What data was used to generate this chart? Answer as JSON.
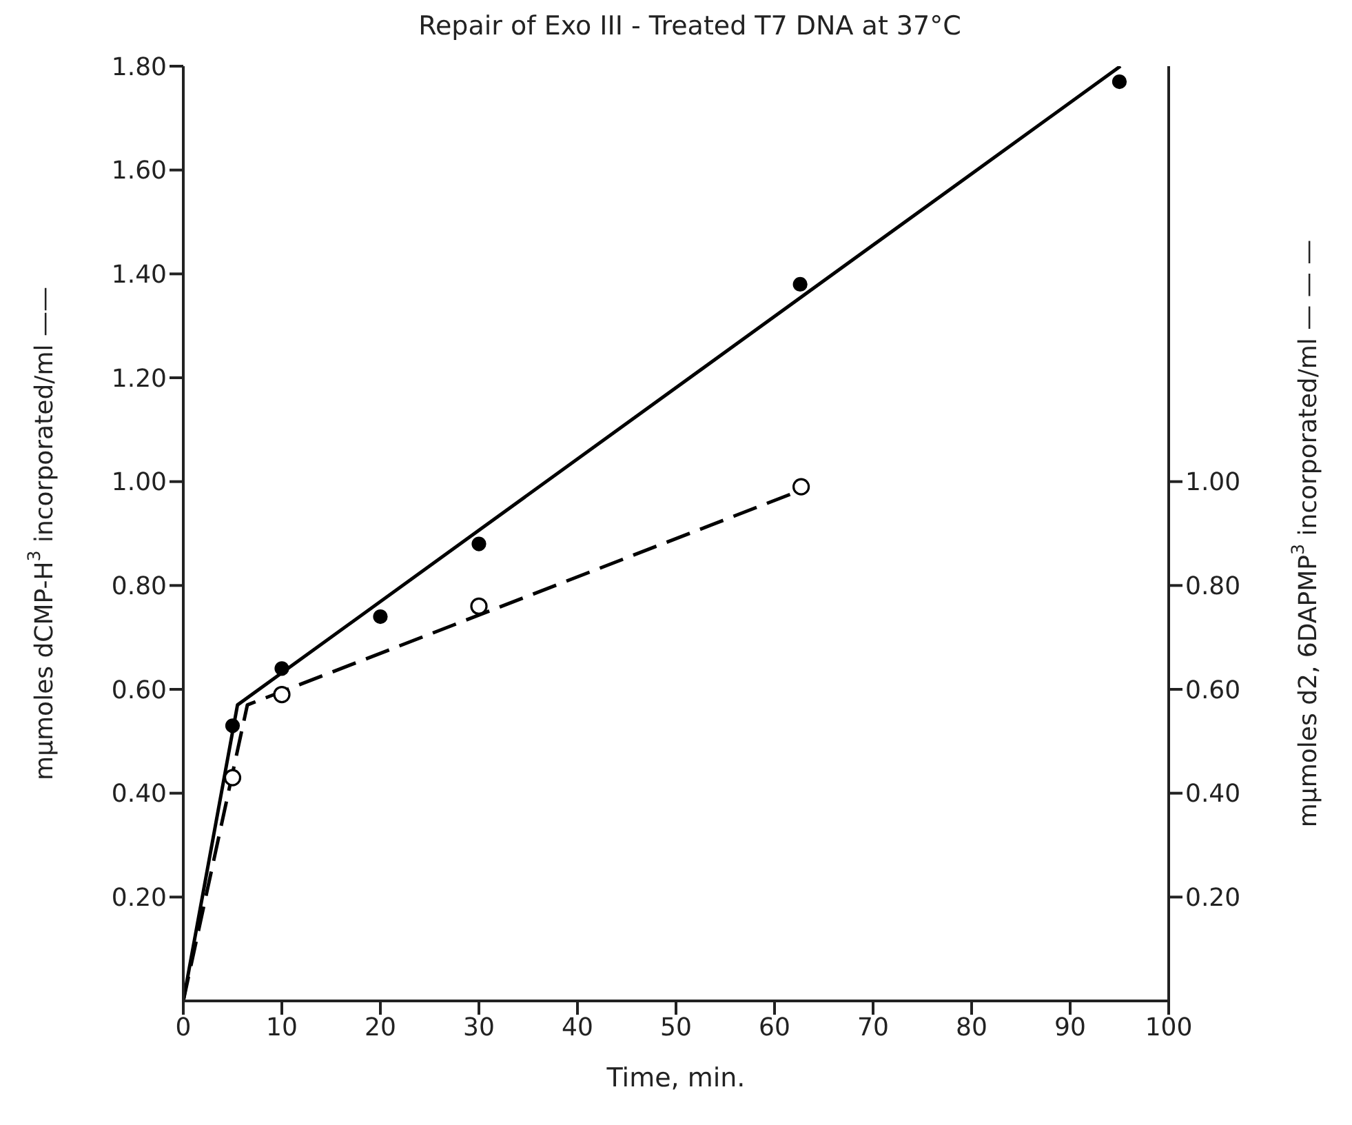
{
  "chart_data": {
    "type": "scatter",
    "title": "Repair of Exo III - Treated T7 DNA at 37°C",
    "xlabel": "Time, min.",
    "ylabel": "mμmoles dCMP-H$^{3}$ incorporated/ml ——",
    "y2label": "mμmoles d2, 6DAPMP$^{3}$ incorporated/ml — — —",
    "xlim": [
      0,
      100
    ],
    "xticks": [
      0,
      10,
      20,
      30,
      40,
      50,
      60,
      70,
      80,
      90,
      100
    ],
    "ylim": [
      0,
      1.8
    ],
    "yticks": [
      {
        "value": 0.2,
        "label": "0.20"
      },
      {
        "value": 0.4,
        "label": "0.40"
      },
      {
        "value": 0.6,
        "label": "0.60"
      },
      {
        "value": 0.8,
        "label": "0.80"
      },
      {
        "value": 1.0,
        "label": "1.00"
      },
      {
        "value": 1.2,
        "label": "1.20"
      },
      {
        "value": 1.4,
        "label": "1.40"
      },
      {
        "value": 1.6,
        "label": "1.60"
      },
      {
        "value": 1.8,
        "label": "1.80"
      }
    ],
    "y2lim": [
      0,
      1.8
    ],
    "y2ticks": [
      {
        "value": 0.2,
        "label": "0.20"
      },
      {
        "value": 0.4,
        "label": "0.40"
      },
      {
        "value": 0.6,
        "label": "0.60"
      },
      {
        "value": 0.8,
        "label": "0.80"
      },
      {
        "value": 1.0,
        "label": "1.00"
      }
    ],
    "grid": false,
    "legend": false,
    "marker": "circle",
    "series": [
      {
        "color": "#000000",
        "x": [
          5,
          10,
          20,
          30,
          62.6,
          95
        ],
        "values": [
          0.53,
          0.64,
          0.74,
          0.88,
          1.38,
          1.77
        ]
      },
      {
        "color": "#000000",
        "axis": "y2",
        "x": [
          5,
          10,
          30,
          62.7
        ],
        "values": [
          0.43,
          0.59,
          0.76,
          0.99
        ]
      },
      {
        "type": "line",
        "color": "#000000",
        "marker": "none",
        "line_style": "solid",
        "x": [
          0,
          5.5,
          95.1
        ],
        "values": [
          0,
          0.57,
          1.8
        ]
      },
      {
        "type": "line",
        "color": "#000000",
        "marker": "none",
        "line_style": "dashed",
        "axis": "y2",
        "x": [
          0,
          6.5,
          62.2
        ],
        "values": [
          0,
          0.57,
          0.98
        ]
      }
    ]
  }
}
